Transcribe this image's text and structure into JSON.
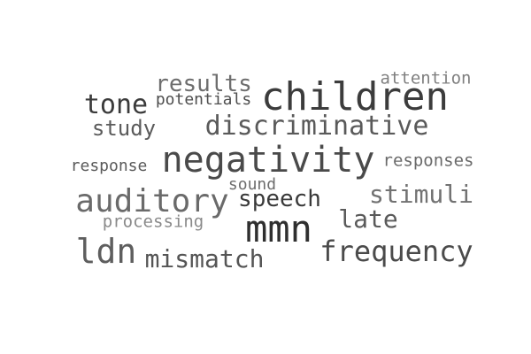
{
  "words": [
    {
      "text": "children",
      "color": "#3c3c3c"
    },
    {
      "text": "negativity",
      "color": "#4a4a4a"
    },
    {
      "text": "mmn",
      "color": "#2f2f2f"
    },
    {
      "text": "auditory",
      "color": "#6a6a6a"
    },
    {
      "text": "discriminative",
      "color": "#5a5a5a"
    },
    {
      "text": "frequency",
      "color": "#4b4b4b"
    },
    {
      "text": "ldn",
      "color": "#5e5e5e"
    },
    {
      "text": "mismatch",
      "color": "#555555"
    },
    {
      "text": "speech",
      "color": "#3a3a3a"
    },
    {
      "text": "stimuli",
      "color": "#727272"
    },
    {
      "text": "late",
      "color": "#5a5a5a"
    },
    {
      "text": "tone",
      "color": "#3b3b3b"
    },
    {
      "text": "results",
      "color": "#6e6e6e"
    },
    {
      "text": "study",
      "color": "#5b5b5b"
    },
    {
      "text": "potentials",
      "color": "#4e4e4e"
    },
    {
      "text": "attention",
      "color": "#808080"
    },
    {
      "text": "responses",
      "color": "#6a6a6a"
    },
    {
      "text": "response",
      "color": "#5a5a5a"
    },
    {
      "text": "sound",
      "color": "#6d6d6d"
    },
    {
      "text": "processing",
      "color": "#8a8a8a"
    }
  ]
}
